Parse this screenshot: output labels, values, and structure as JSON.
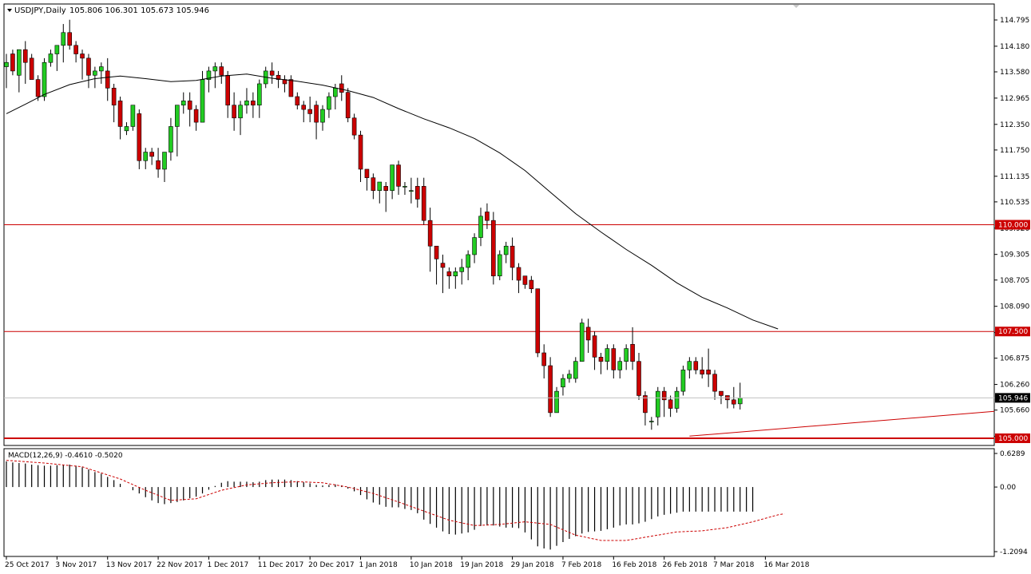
{
  "header": {
    "symbol_label": "USDJPY,Daily",
    "ohlc_label": "105.806 106.301 105.673 105.946"
  },
  "colors": {
    "bull": "#22cc22",
    "bear": "#cc0000",
    "hline": "#cc0000",
    "ma": "#000000",
    "signal": "#cc0000"
  },
  "chart_data": {
    "type": "candlestick",
    "symbol": "USDJPY",
    "timeframe": "Daily",
    "price_axis_ticks": [
      "114.795",
      "114.180",
      "113.580",
      "112.965",
      "112.350",
      "111.750",
      "111.135",
      "110.535",
      "109.920",
      "109.305",
      "108.705",
      "108.090",
      "107.475",
      "106.875",
      "106.260",
      "105.660",
      "105.045"
    ],
    "price_range": [
      104.85,
      115.15
    ],
    "current_price_label": "105.946",
    "current_price": 105.946,
    "horizontal_lines": [
      {
        "price": 110.0,
        "label": "110.000"
      },
      {
        "price": 107.5,
        "label": "107.500"
      },
      {
        "price": 105.0,
        "label": "105.000"
      }
    ],
    "trendline": {
      "from": [
        108,
        105.05
      ],
      "to": [
        124,
        105.63
      ]
    },
    "moving_average": [
      [
        0,
        112.6
      ],
      [
        3,
        112.82
      ],
      [
        6,
        113.05
      ],
      [
        10,
        113.28
      ],
      [
        14,
        113.42
      ],
      [
        18,
        113.48
      ],
      [
        22,
        113.42
      ],
      [
        26,
        113.35
      ],
      [
        30,
        113.38
      ],
      [
        34,
        113.48
      ],
      [
        38,
        113.53
      ],
      [
        42,
        113.43
      ],
      [
        46,
        113.36
      ],
      [
        50,
        113.27
      ],
      [
        54,
        113.14
      ],
      [
        58,
        112.98
      ],
      [
        62,
        112.72
      ],
      [
        66,
        112.48
      ],
      [
        70,
        112.27
      ],
      [
        74,
        112.02
      ],
      [
        78,
        111.68
      ],
      [
        82,
        111.27
      ],
      [
        86,
        110.76
      ],
      [
        90,
        110.26
      ],
      [
        94,
        109.83
      ],
      [
        98,
        109.42
      ],
      [
        102,
        109.05
      ],
      [
        106,
        108.64
      ],
      [
        110,
        108.3
      ],
      [
        114,
        108.05
      ],
      [
        118,
        107.77
      ],
      [
        122,
        107.56
      ]
    ],
    "candles": [
      [
        113.7,
        113.8,
        113.2,
        114.0
      ],
      [
        114.0,
        113.6,
        113.5,
        114.1
      ],
      [
        113.5,
        114.1,
        113.1,
        114.1
      ],
      [
        114.1,
        113.8,
        113.3,
        114.3
      ],
      [
        113.9,
        113.4,
        113.4,
        114.0
      ],
      [
        113.4,
        113.0,
        112.9,
        113.5
      ],
      [
        113.0,
        113.8,
        112.9,
        113.9
      ],
      [
        113.8,
        114.0,
        113.7,
        114.1
      ],
      [
        114.0,
        114.2,
        113.6,
        114.2
      ],
      [
        114.2,
        114.5,
        113.8,
        114.7
      ],
      [
        114.5,
        114.2,
        114.1,
        114.8
      ],
      [
        114.2,
        114.0,
        113.8,
        114.3
      ],
      [
        114.0,
        113.9,
        113.4,
        114.1
      ],
      [
        113.9,
        113.5,
        113.2,
        114.0
      ],
      [
        113.5,
        113.6,
        113.2,
        113.7
      ],
      [
        113.6,
        113.7,
        113.3,
        113.8
      ],
      [
        113.6,
        113.2,
        112.9,
        113.9
      ],
      [
        113.2,
        112.8,
        112.4,
        113.3
      ],
      [
        112.9,
        112.3,
        112.0,
        113.0
      ],
      [
        112.2,
        112.3,
        112.1,
        112.4
      ],
      [
        112.3,
        112.8,
        112.2,
        112.8
      ],
      [
        112.6,
        111.5,
        111.3,
        112.7
      ],
      [
        111.5,
        111.7,
        111.3,
        111.8
      ],
      [
        111.7,
        111.6,
        111.4,
        111.8
      ],
      [
        111.5,
        111.3,
        111.1,
        111.8
      ],
      [
        111.3,
        111.7,
        111.0,
        111.7
      ],
      [
        111.7,
        112.3,
        111.5,
        112.5
      ],
      [
        112.3,
        112.8,
        111.6,
        112.8
      ],
      [
        112.8,
        112.9,
        112.6,
        113.1
      ],
      [
        112.9,
        112.7,
        112.3,
        113.1
      ],
      [
        112.7,
        112.4,
        112.2,
        112.8
      ],
      [
        112.4,
        113.4,
        112.4,
        113.6
      ],
      [
        113.4,
        113.6,
        113.1,
        113.7
      ],
      [
        113.6,
        113.7,
        113.2,
        113.8
      ],
      [
        113.7,
        113.5,
        113.3,
        113.8
      ],
      [
        113.5,
        112.8,
        112.5,
        113.6
      ],
      [
        112.8,
        112.5,
        112.2,
        113.1
      ],
      [
        112.5,
        112.8,
        112.1,
        112.9
      ],
      [
        112.8,
        112.9,
        112.6,
        113.2
      ],
      [
        112.9,
        112.8,
        112.5,
        113.1
      ],
      [
        112.8,
        113.3,
        112.5,
        113.4
      ],
      [
        113.3,
        113.6,
        113.2,
        113.7
      ],
      [
        113.6,
        113.5,
        113.3,
        113.8
      ],
      [
        113.5,
        113.4,
        113.2,
        113.6
      ],
      [
        113.4,
        113.3,
        113.1,
        113.5
      ],
      [
        113.4,
        113.0,
        113.0,
        113.5
      ],
      [
        113.0,
        112.8,
        112.7,
        113.1
      ],
      [
        112.8,
        112.7,
        112.4,
        112.9
      ],
      [
        112.7,
        112.6,
        112.4,
        113.0
      ],
      [
        112.8,
        112.4,
        112.0,
        112.9
      ],
      [
        112.4,
        112.7,
        112.2,
        112.8
      ],
      [
        112.7,
        113.0,
        112.5,
        113.1
      ],
      [
        113.0,
        113.2,
        112.7,
        113.3
      ],
      [
        113.3,
        113.1,
        112.9,
        113.5
      ],
      [
        113.1,
        112.5,
        112.4,
        113.2
      ],
      [
        112.5,
        112.1,
        112.0,
        112.6
      ],
      [
        112.1,
        111.3,
        111.0,
        112.2
      ],
      [
        111.3,
        111.1,
        110.8,
        111.3
      ],
      [
        111.1,
        110.8,
        110.6,
        111.2
      ],
      [
        110.8,
        111.0,
        110.5,
        111.0
      ],
      [
        110.9,
        110.8,
        110.3,
        111.0
      ],
      [
        110.8,
        111.4,
        110.6,
        111.4
      ],
      [
        111.4,
        110.9,
        110.7,
        111.5
      ],
      [
        110.9,
        110.9,
        110.7,
        111.0
      ],
      [
        110.8,
        110.8,
        110.5,
        111.1
      ],
      [
        110.9,
        110.6,
        110.4,
        111.1
      ],
      [
        110.9,
        110.1,
        110.0,
        111.1
      ],
      [
        110.1,
        109.5,
        108.9,
        110.4
      ],
      [
        109.5,
        109.2,
        108.6,
        109.5
      ],
      [
        109.1,
        109.0,
        108.4,
        109.3
      ],
      [
        108.9,
        108.8,
        108.5,
        109.0
      ],
      [
        108.8,
        108.9,
        108.5,
        109.0
      ],
      [
        108.9,
        109.0,
        108.6,
        109.2
      ],
      [
        109.0,
        109.3,
        108.7,
        109.4
      ],
      [
        109.3,
        109.7,
        109.1,
        109.8
      ],
      [
        109.7,
        110.2,
        109.5,
        110.4
      ],
      [
        110.3,
        110.1,
        109.9,
        110.5
      ],
      [
        110.1,
        108.8,
        108.6,
        110.3
      ],
      [
        108.8,
        109.3,
        108.7,
        109.4
      ],
      [
        109.3,
        109.5,
        109.1,
        109.6
      ],
      [
        109.5,
        109.0,
        108.7,
        109.7
      ],
      [
        109.0,
        108.7,
        108.4,
        109.1
      ],
      [
        108.8,
        108.6,
        108.5,
        108.8
      ],
      [
        108.7,
        108.5,
        108.4,
        108.8
      ],
      [
        108.5,
        107.0,
        106.9,
        108.5
      ],
      [
        107.0,
        106.7,
        106.4,
        107.2
      ],
      [
        106.7,
        105.6,
        105.5,
        106.9
      ],
      [
        105.6,
        106.1,
        105.6,
        106.2
      ],
      [
        106.2,
        106.4,
        106.0,
        106.5
      ],
      [
        106.4,
        106.5,
        106.3,
        106.6
      ],
      [
        106.4,
        106.8,
        106.3,
        106.9
      ],
      [
        106.8,
        107.7,
        106.8,
        107.8
      ],
      [
        107.6,
        107.3,
        107.0,
        107.8
      ],
      [
        107.4,
        106.9,
        106.6,
        107.5
      ],
      [
        106.9,
        106.8,
        106.5,
        107.0
      ],
      [
        106.8,
        107.1,
        106.6,
        107.2
      ],
      [
        107.1,
        106.6,
        106.4,
        107.2
      ],
      [
        106.6,
        106.8,
        106.4,
        106.9
      ],
      [
        106.8,
        107.1,
        106.6,
        107.2
      ],
      [
        107.2,
        106.8,
        106.6,
        107.6
      ],
      [
        106.8,
        106.0,
        105.9,
        107.0
      ],
      [
        106.0,
        105.6,
        105.3,
        106.1
      ],
      [
        105.4,
        105.4,
        105.2,
        105.5
      ],
      [
        105.5,
        106.1,
        105.3,
        106.2
      ],
      [
        106.1,
        105.9,
        105.5,
        106.2
      ],
      [
        105.9,
        105.7,
        105.5,
        106.0
      ],
      [
        105.7,
        106.1,
        105.6,
        106.2
      ],
      [
        106.1,
        106.6,
        106.0,
        106.7
      ],
      [
        106.6,
        106.8,
        106.4,
        106.9
      ],
      [
        106.8,
        106.6,
        106.5,
        106.9
      ],
      [
        106.6,
        106.5,
        106.4,
        106.9
      ],
      [
        106.6,
        106.5,
        106.2,
        107.1
      ],
      [
        106.5,
        106.1,
        105.9,
        106.6
      ],
      [
        106.1,
        106.0,
        105.8,
        106.1
      ],
      [
        106.0,
        105.9,
        105.7,
        106.0
      ],
      [
        105.9,
        105.8,
        105.7,
        106.2
      ],
      [
        105.806,
        105.946,
        105.673,
        106.301
      ]
    ],
    "x_axis_dates": [
      {
        "i": 0,
        "label": "25 Oct 2017"
      },
      {
        "i": 8,
        "label": "3 Nov 2017"
      },
      {
        "i": 16,
        "label": "13 Nov 2017"
      },
      {
        "i": 24,
        "label": "22 Nov 2017"
      },
      {
        "i": 32,
        "label": "1 Dec 2017"
      },
      {
        "i": 40,
        "label": "11 Dec 2017"
      },
      {
        "i": 48,
        "label": "20 Dec 2017"
      },
      {
        "i": 56,
        "label": "1 Jan 2018"
      },
      {
        "i": 64,
        "label": "10 Jan 2018"
      },
      {
        "i": 72,
        "label": "19 Jan 2018"
      },
      {
        "i": 80,
        "label": "29 Jan 2018"
      },
      {
        "i": 88,
        "label": "7 Feb 2018"
      },
      {
        "i": 96,
        "label": "16 Feb 2018"
      },
      {
        "i": 104,
        "label": "26 Feb 2018"
      },
      {
        "i": 112,
        "label": "7 Mar 2018"
      },
      {
        "i": 120,
        "label": "16 Mar 2018"
      }
    ],
    "macd": {
      "label": "MACD(12,26,9) -0.4610 -0.5020",
      "axis_ticks": [
        "0.6289",
        "0.00",
        "-1.2094"
      ],
      "range": [
        -1.2094,
        0.6289
      ],
      "histogram": [
        0.48,
        0.46,
        0.45,
        0.44,
        0.42,
        0.41,
        0.4,
        0.4,
        0.41,
        0.41,
        0.42,
        0.4,
        0.37,
        0.33,
        0.28,
        0.25,
        0.19,
        0.13,
        0.06,
        0.0,
        -0.06,
        -0.12,
        -0.19,
        -0.25,
        -0.3,
        -0.32,
        -0.3,
        -0.28,
        -0.25,
        -0.21,
        -0.18,
        -0.12,
        -0.05,
        0.02,
        0.08,
        0.11,
        0.1,
        0.1,
        0.1,
        0.09,
        0.1,
        0.13,
        0.14,
        0.14,
        0.14,
        0.13,
        0.11,
        0.09,
        0.07,
        0.04,
        0.03,
        0.04,
        0.05,
        0.03,
        -0.03,
        -0.08,
        -0.15,
        -0.23,
        -0.29,
        -0.33,
        -0.37,
        -0.38,
        -0.38,
        -0.41,
        -0.43,
        -0.49,
        -0.61,
        -0.69,
        -0.76,
        -0.83,
        -0.88,
        -0.89,
        -0.87,
        -0.85,
        -0.8,
        -0.73,
        -0.72,
        -0.72,
        -0.74,
        -0.76,
        -0.76,
        -0.77,
        -0.85,
        -0.98,
        -1.11,
        -1.15,
        -1.17,
        -1.1,
        -1.03,
        -0.97,
        -0.92,
        -0.87,
        -0.84,
        -0.83,
        -0.82,
        -0.79,
        -0.76,
        -0.72,
        -0.7,
        -0.7,
        -0.68,
        -0.65,
        -0.6,
        -0.55,
        -0.52,
        -0.5,
        -0.48,
        -0.46,
        -0.46,
        -0.46,
        -0.46,
        -0.46,
        -0.46,
        -0.46,
        -0.46,
        -0.46,
        -0.46,
        -0.46,
        -0.46
      ],
      "signal": [
        [
          0,
          0.5
        ],
        [
          6,
          0.45
        ],
        [
          12,
          0.38
        ],
        [
          18,
          0.15
        ],
        [
          22,
          -0.06
        ],
        [
          26,
          -0.25
        ],
        [
          30,
          -0.22
        ],
        [
          34,
          -0.06
        ],
        [
          38,
          0.04
        ],
        [
          42,
          0.08
        ],
        [
          46,
          0.1
        ],
        [
          50,
          0.08
        ],
        [
          54,
          0.0
        ],
        [
          58,
          -0.12
        ],
        [
          62,
          -0.28
        ],
        [
          66,
          -0.45
        ],
        [
          70,
          -0.62
        ],
        [
          74,
          -0.72
        ],
        [
          78,
          -0.7
        ],
        [
          82,
          -0.65
        ],
        [
          86,
          -0.7
        ],
        [
          90,
          -0.9
        ],
        [
          94,
          -1.0
        ],
        [
          98,
          -1.0
        ],
        [
          102,
          -0.92
        ],
        [
          106,
          -0.84
        ],
        [
          110,
          -0.82
        ],
        [
          114,
          -0.76
        ],
        [
          118,
          -0.65
        ],
        [
          122,
          -0.52
        ],
        [
          123,
          -0.5
        ]
      ]
    }
  }
}
